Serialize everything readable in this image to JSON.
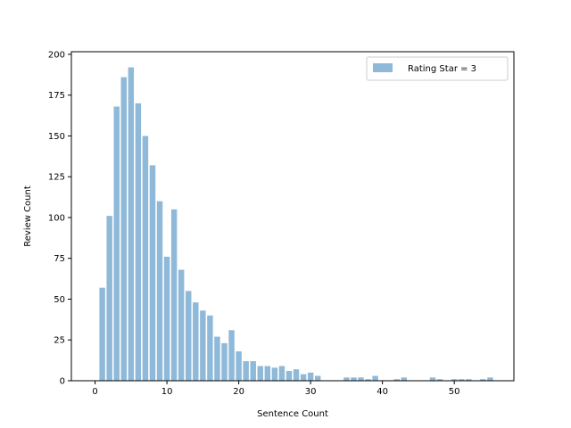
{
  "chart_data": {
    "type": "bar",
    "title": "",
    "xlabel": "Sentence Count",
    "ylabel": "Review Count",
    "xlim": [
      -3.3,
      58.3
    ],
    "ylim": [
      0,
      201.6
    ],
    "xticks": [
      0,
      10,
      20,
      30,
      40,
      50
    ],
    "yticks": [
      0,
      25,
      50,
      75,
      100,
      125,
      150,
      175,
      200
    ],
    "legend_location": "top-right",
    "grid": false,
    "series": [
      {
        "name": "Rating Star = 3",
        "color": "#8fb9d8",
        "x": [
          1,
          2,
          3,
          4,
          5,
          6,
          7,
          8,
          9,
          10,
          11,
          12,
          13,
          14,
          15,
          16,
          17,
          18,
          19,
          20,
          21,
          22,
          23,
          24,
          25,
          26,
          27,
          28,
          29,
          30,
          31,
          35,
          36,
          37,
          38,
          39,
          42,
          43,
          47,
          48,
          50,
          51,
          52,
          54,
          55
        ],
        "values": [
          57,
          101,
          168,
          186,
          192,
          170,
          150,
          132,
          110,
          76,
          105,
          68,
          55,
          48,
          43,
          40,
          27,
          23,
          31,
          18,
          12,
          12,
          9,
          9,
          8,
          9,
          6,
          7,
          4,
          5,
          3,
          2,
          2,
          2,
          1,
          3,
          1,
          2,
          2,
          1,
          1,
          1,
          1,
          1,
          2
        ]
      }
    ]
  }
}
